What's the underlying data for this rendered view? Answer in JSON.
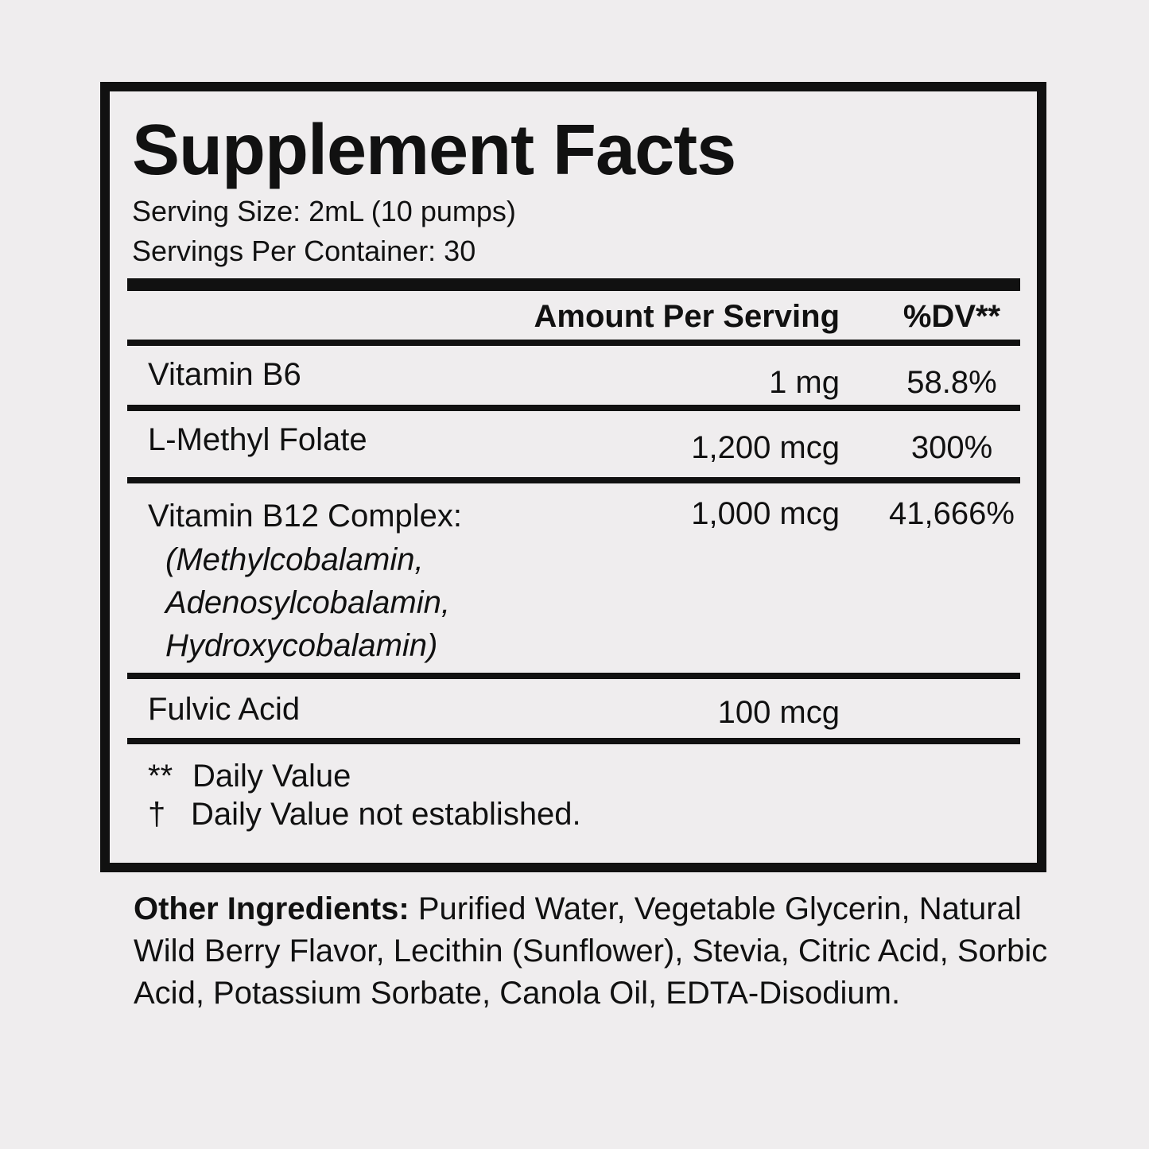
{
  "title": "Supplement Facts",
  "serving_size": "Serving Size: 2mL (10 pumps)",
  "servings_per_container": "Servings Per Container: 30",
  "table": {
    "header": [
      "Amount Per Serving",
      "%DV**"
    ],
    "rows": [
      {
        "name": "Vitamin B6",
        "amount": "1 mg",
        "dv": "58.8%"
      },
      {
        "name": "L-Methyl Folate",
        "amount": "1,200 mcg",
        "dv": "300%"
      },
      {
        "name": "Vitamin B12 Complex:",
        "sub": [
          "(Methylcobalamin,",
          "Adenosylcobalamin,",
          "Hydroxycobalamin)"
        ],
        "amount": "1,000 mcg",
        "dv": "41,666%"
      },
      {
        "name": "Fulvic Acid",
        "amount": "100 mcg"
      }
    ]
  },
  "footnotes": [
    {
      "symbol": "**",
      "text": "Daily Value"
    },
    {
      "symbol": "†",
      "text": "Daily Value not established."
    }
  ],
  "other_ingredients": {
    "label": "Other Ingredients:",
    "text": "Purified Water, Vegetable Glycerin, Natural Wild Berry Flavor, Lecithin (Sunflower), Stevia, Citric Acid, Sorbic Acid, Potassium Sorbate, Canola Oil, EDTA-Disodium."
  }
}
